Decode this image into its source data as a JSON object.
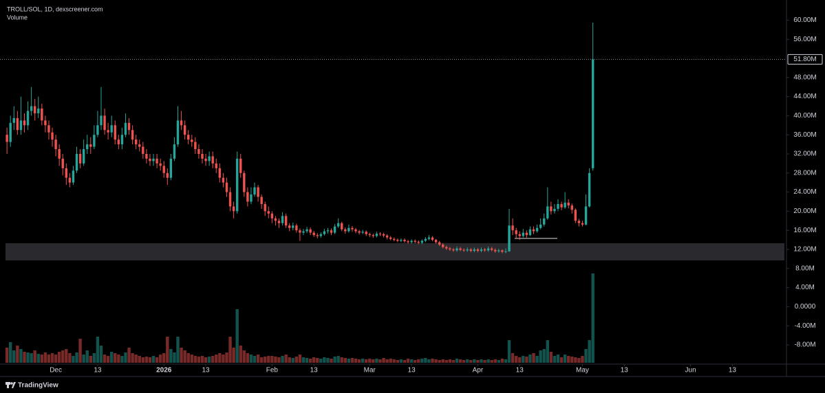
{
  "chart_data": {
    "type": "candlestick",
    "title": "TROLL/SOL, 1D, dexscreener.com",
    "volume_label": "Volume",
    "footer": "TradingView",
    "up_color": "#26a69a",
    "down_color": "#ef5350",
    "grid": false,
    "xlim": [
      -2,
      223.5
    ],
    "ylim": [
      -12.03,
      64.23
    ],
    "yticks": [
      {
        "value": 60,
        "label": "60.00M"
      },
      {
        "value": 56,
        "label": "56.00M"
      },
      {
        "value": 48,
        "label": "48.00M"
      },
      {
        "value": 44,
        "label": "44.00M"
      },
      {
        "value": 40,
        "label": "40.00M"
      },
      {
        "value": 36,
        "label": "36.00M"
      },
      {
        "value": 32,
        "label": "32.00M"
      },
      {
        "value": 28,
        "label": "28.00M"
      },
      {
        "value": 24,
        "label": "24.00M"
      },
      {
        "value": 20,
        "label": "20.00M"
      },
      {
        "value": 16,
        "label": "16.00M"
      },
      {
        "value": 12,
        "label": "12.00M"
      },
      {
        "value": 8,
        "label": "8.00M"
      },
      {
        "value": 4,
        "label": "4.00M"
      },
      {
        "value": 0,
        "label": "0.0000"
      },
      {
        "value": -4,
        "label": "-4.00M"
      },
      {
        "value": -8,
        "label": "-8.00M"
      }
    ],
    "xticks": [
      {
        "value": 14,
        "label": "Dec"
      },
      {
        "value": 26,
        "label": "13"
      },
      {
        "value": 45,
        "label": "2026"
      },
      {
        "value": 57,
        "label": "13"
      },
      {
        "value": 76,
        "label": "Feb"
      },
      {
        "value": 88,
        "label": "13"
      },
      {
        "value": 104,
        "label": "Mar"
      },
      {
        "value": 116,
        "label": "13"
      },
      {
        "value": 135,
        "label": "Apr"
      },
      {
        "value": 147,
        "label": "13"
      },
      {
        "value": 165,
        "label": "May"
      },
      {
        "value": 177,
        "label": "13"
      },
      {
        "value": 196,
        "label": "Jun"
      },
      {
        "value": 208,
        "label": "13"
      }
    ],
    "last_price": {
      "value": 51.8,
      "label": "51.80M"
    },
    "open": [
      36,
      34.5,
      38.5,
      39.5,
      37,
      39,
      38,
      41,
      42,
      40.5,
      41.5,
      39,
      38,
      36.5,
      35,
      33,
      31,
      29,
      27,
      26,
      28.5,
      32,
      30,
      33,
      34,
      33.5,
      36,
      38,
      40,
      37,
      36.5,
      38,
      35,
      34,
      36,
      38.5,
      37,
      35,
      34,
      33.5,
      32,
      31,
      30.5,
      31,
      30,
      29.5,
      28,
      27,
      31,
      34,
      39,
      38,
      36,
      35,
      34.5,
      33,
      32,
      31,
      30.5,
      31.5,
      30,
      29,
      27,
      26,
      24,
      21,
      20,
      31,
      28,
      24,
      22,
      23.5,
      25,
      23,
      21.5,
      20,
      19.5,
      18.5,
      18,
      17.5,
      19,
      17,
      16.5,
      17,
      16,
      15.5,
      15.8,
      16.2,
      15.5,
      15,
      14.8,
      15.2,
      15.8,
      16,
      15.5,
      16.8,
      17.5,
      16.2,
      15.8,
      16.5,
      16.2,
      15.8,
      15.5,
      15.7,
      15.2,
      15,
      14.8,
      15.3,
      15.2,
      14.9,
      14.5,
      14.2,
      14,
      13.8,
      14,
      13.7,
      13.5,
      13.8,
      13.6,
      13.4,
      13.8,
      14.2,
      14.5,
      14,
      13.5,
      13,
      12.5,
      12.2,
      12,
      11.8,
      12.2,
      11.9,
      11.8,
      12,
      11.7,
      12,
      11.7,
      12,
      11.8,
      12.2,
      11.9,
      11.6,
      11.8,
      11.5,
      11.6,
      17,
      16,
      15.2,
      14.8,
      15.5,
      15,
      16.2,
      15.8,
      16.5,
      17.2,
      18.5,
      21,
      20,
      20.5,
      21.5,
      20.8,
      21.8,
      21.2,
      20.3,
      18,
      17.5,
      17.2,
      21,
      29
    ],
    "high": [
      37.5,
      40,
      42,
      41,
      44,
      40.5,
      43,
      46,
      43.5,
      44,
      42.5,
      40,
      39,
      37.5,
      36,
      34,
      32,
      30,
      28,
      29.5,
      33.5,
      33,
      35,
      36,
      35.5,
      38,
      41,
      46,
      41.5,
      38.5,
      40,
      39,
      36,
      37.5,
      40.5,
      39.5,
      38,
      36,
      35,
      34.5,
      33,
      32,
      32,
      32,
      31,
      30.5,
      29,
      32,
      35.5,
      42,
      41,
      39,
      37,
      36,
      35.5,
      34,
      33,
      32,
      32.5,
      32.5,
      31,
      30,
      28,
      27,
      25,
      22,
      32.5,
      32,
      28.5,
      25,
      25,
      26,
      25.5,
      23.5,
      22,
      21,
      20,
      19,
      18.5,
      19.8,
      19.5,
      17.5,
      17.6,
      17.4,
      16.4,
      16.3,
      16.7,
      16.6,
      15.9,
      15.4,
      15.6,
      16.3,
      16.5,
      16.4,
      17.3,
      18.5,
      17.8,
      16.6,
      17.2,
      16.9,
      16.5,
      16.1,
      16.1,
      16,
      15.5,
      15.3,
      15.7,
      15.6,
      15.5,
      15.2,
      14.8,
      14.5,
      14.3,
      14.3,
      14.3,
      14,
      14.1,
      14.1,
      13.9,
      14.1,
      14.6,
      15,
      14.8,
      14.2,
      13.8,
      13.3,
      12.8,
      12.5,
      12.3,
      12.6,
      12.5,
      12.2,
      12.4,
      12.3,
      12.4,
      12.3,
      12.4,
      12.3,
      12.6,
      12.5,
      12.2,
      12.1,
      12,
      12.2,
      20.5,
      18.5,
      16.5,
      15.8,
      16.3,
      16,
      16.8,
      16.8,
      17.2,
      18.5,
      19.5,
      25,
      22,
      21.5,
      22.5,
      22,
      24,
      22.5,
      21.6,
      20.6,
      18.4,
      18,
      23.5,
      29,
      59.5
    ],
    "low": [
      32,
      33.5,
      37,
      36,
      36,
      36.5,
      37,
      40,
      39,
      39.5,
      38,
      36.5,
      35,
      33.5,
      31.5,
      29.5,
      27.5,
      25.5,
      25,
      25.5,
      28,
      29,
      29.5,
      32,
      32,
      33,
      35.5,
      37,
      36,
      35,
      35.5,
      34,
      33,
      33,
      35.5,
      36,
      34,
      33,
      32.5,
      31,
      30,
      29.5,
      29.5,
      29,
      28.5,
      27,
      25.5,
      26.5,
      30.5,
      33.5,
      37,
      35,
      34,
      33.5,
      32,
      31,
      30,
      29.5,
      29.5,
      29,
      28,
      26,
      25,
      23,
      20,
      18.5,
      19.5,
      27,
      23,
      21,
      21.5,
      23,
      22,
      20.5,
      19,
      18.5,
      17.5,
      17,
      16.5,
      17,
      16.5,
      15.8,
      16,
      15.5,
      13.8,
      15,
      15.4,
      15,
      14.6,
      14.3,
      14.4,
      14.9,
      15.3,
      15,
      15.2,
      16.5,
      15.8,
      15.3,
      15.5,
      15.7,
      15.4,
      15.1,
      15.2,
      14.8,
      14.6,
      14.4,
      14.5,
      14.8,
      14.5,
      14.1,
      13.9,
      13.7,
      13.5,
      13.5,
      13.4,
      13.2,
      13.2,
      13.3,
      13.1,
      13.1,
      13.5,
      13.9,
      13.7,
      13.2,
      12.7,
      12.2,
      11.9,
      11.7,
      11.5,
      11.5,
      11.6,
      11.5,
      11.5,
      11.4,
      11.4,
      11.4,
      11.4,
      11.5,
      11.5,
      11.6,
      11.3,
      11.3,
      11.2,
      11.2,
      11.5,
      15,
      14.2,
      14,
      14.5,
      14.5,
      14.8,
      15.2,
      15.5,
      16.2,
      16.8,
      18.2,
      19.3,
      19.5,
      20,
      20.2,
      20.5,
      20.6,
      19.5,
      17.5,
      16.8,
      16.8,
      17,
      20.8,
      28.5
    ],
    "close": [
      34.5,
      38.5,
      39.5,
      37,
      39,
      38,
      41,
      42,
      40.5,
      41.5,
      39,
      38,
      36.5,
      35,
      33,
      31,
      29,
      27,
      26,
      28.5,
      32,
      30,
      33,
      34,
      33.5,
      36,
      38,
      40,
      37,
      36.5,
      38,
      35,
      34,
      36,
      38.5,
      37,
      35,
      34,
      33.5,
      32,
      31,
      30.5,
      31,
      30,
      29.5,
      28,
      27,
      31,
      34,
      39,
      38,
      36,
      35,
      34.5,
      33,
      32,
      31,
      30.5,
      31.5,
      30,
      29,
      27,
      26,
      24,
      21,
      20,
      31,
      28,
      24,
      22,
      23.5,
      25,
      23,
      21.5,
      20,
      19.5,
      18.5,
      18,
      17.5,
      19,
      17,
      16.5,
      17,
      16,
      15.5,
      15.8,
      16.2,
      15.5,
      15,
      14.8,
      15.2,
      15.8,
      16,
      15.5,
      16.8,
      17.5,
      16.2,
      15.8,
      16.5,
      16.2,
      15.8,
      15.5,
      15.7,
      15.2,
      15,
      14.8,
      15.3,
      15.2,
      14.9,
      14.5,
      14.2,
      14,
      13.8,
      14,
      13.7,
      13.5,
      13.8,
      13.6,
      13.4,
      13.8,
      14.2,
      14.5,
      14,
      13.5,
      13,
      12.5,
      12.2,
      12,
      11.8,
      12.2,
      11.9,
      11.8,
      12,
      11.7,
      12,
      11.7,
      12,
      11.8,
      12.2,
      11.9,
      11.6,
      11.8,
      11.5,
      11.6,
      17,
      16,
      15.2,
      14.8,
      15.5,
      15,
      16.2,
      15.8,
      16.5,
      17.2,
      18.5,
      21,
      20,
      20.5,
      21.5,
      20.8,
      21.8,
      21.2,
      20.3,
      18,
      17.5,
      17.2,
      21,
      28,
      51.8
    ],
    "volume": [
      22,
      30,
      18,
      25,
      20,
      16,
      15,
      14,
      18,
      13,
      12,
      15,
      12,
      14,
      12,
      16,
      18,
      20,
      14,
      10,
      15,
      35,
      12,
      18,
      10,
      14,
      38,
      25,
      12,
      10,
      16,
      14,
      12,
      10,
      15,
      22,
      14,
      12,
      10,
      8,
      9,
      8,
      10,
      8,
      12,
      14,
      38,
      20,
      15,
      38,
      22,
      18,
      14,
      12,
      10,
      9,
      10,
      8,
      9,
      10,
      12,
      14,
      12,
      15,
      38,
      22,
      78,
      25,
      18,
      14,
      12,
      10,
      12,
      8,
      9,
      10,
      10,
      9,
      8,
      10,
      12,
      8,
      7,
      9,
      12,
      8,
      7,
      6,
      8,
      7,
      6,
      8,
      7,
      6,
      9,
      10,
      8,
      7,
      6,
      7,
      6,
      5,
      6,
      5,
      6,
      5,
      6,
      5,
      7,
      5,
      6,
      5,
      4,
      5,
      4,
      6,
      5,
      4,
      5,
      6,
      7,
      5,
      6,
      5,
      4,
      5,
      4,
      5,
      4,
      6,
      5,
      4,
      5,
      4,
      5,
      4,
      5,
      4,
      5,
      4,
      5,
      4,
      6,
      5,
      33,
      14,
      10,
      8,
      10,
      9,
      12,
      14,
      10,
      18,
      20,
      33,
      16,
      10,
      12,
      8,
      12,
      10,
      9,
      8,
      7,
      10,
      20,
      33,
      130
    ]
  }
}
